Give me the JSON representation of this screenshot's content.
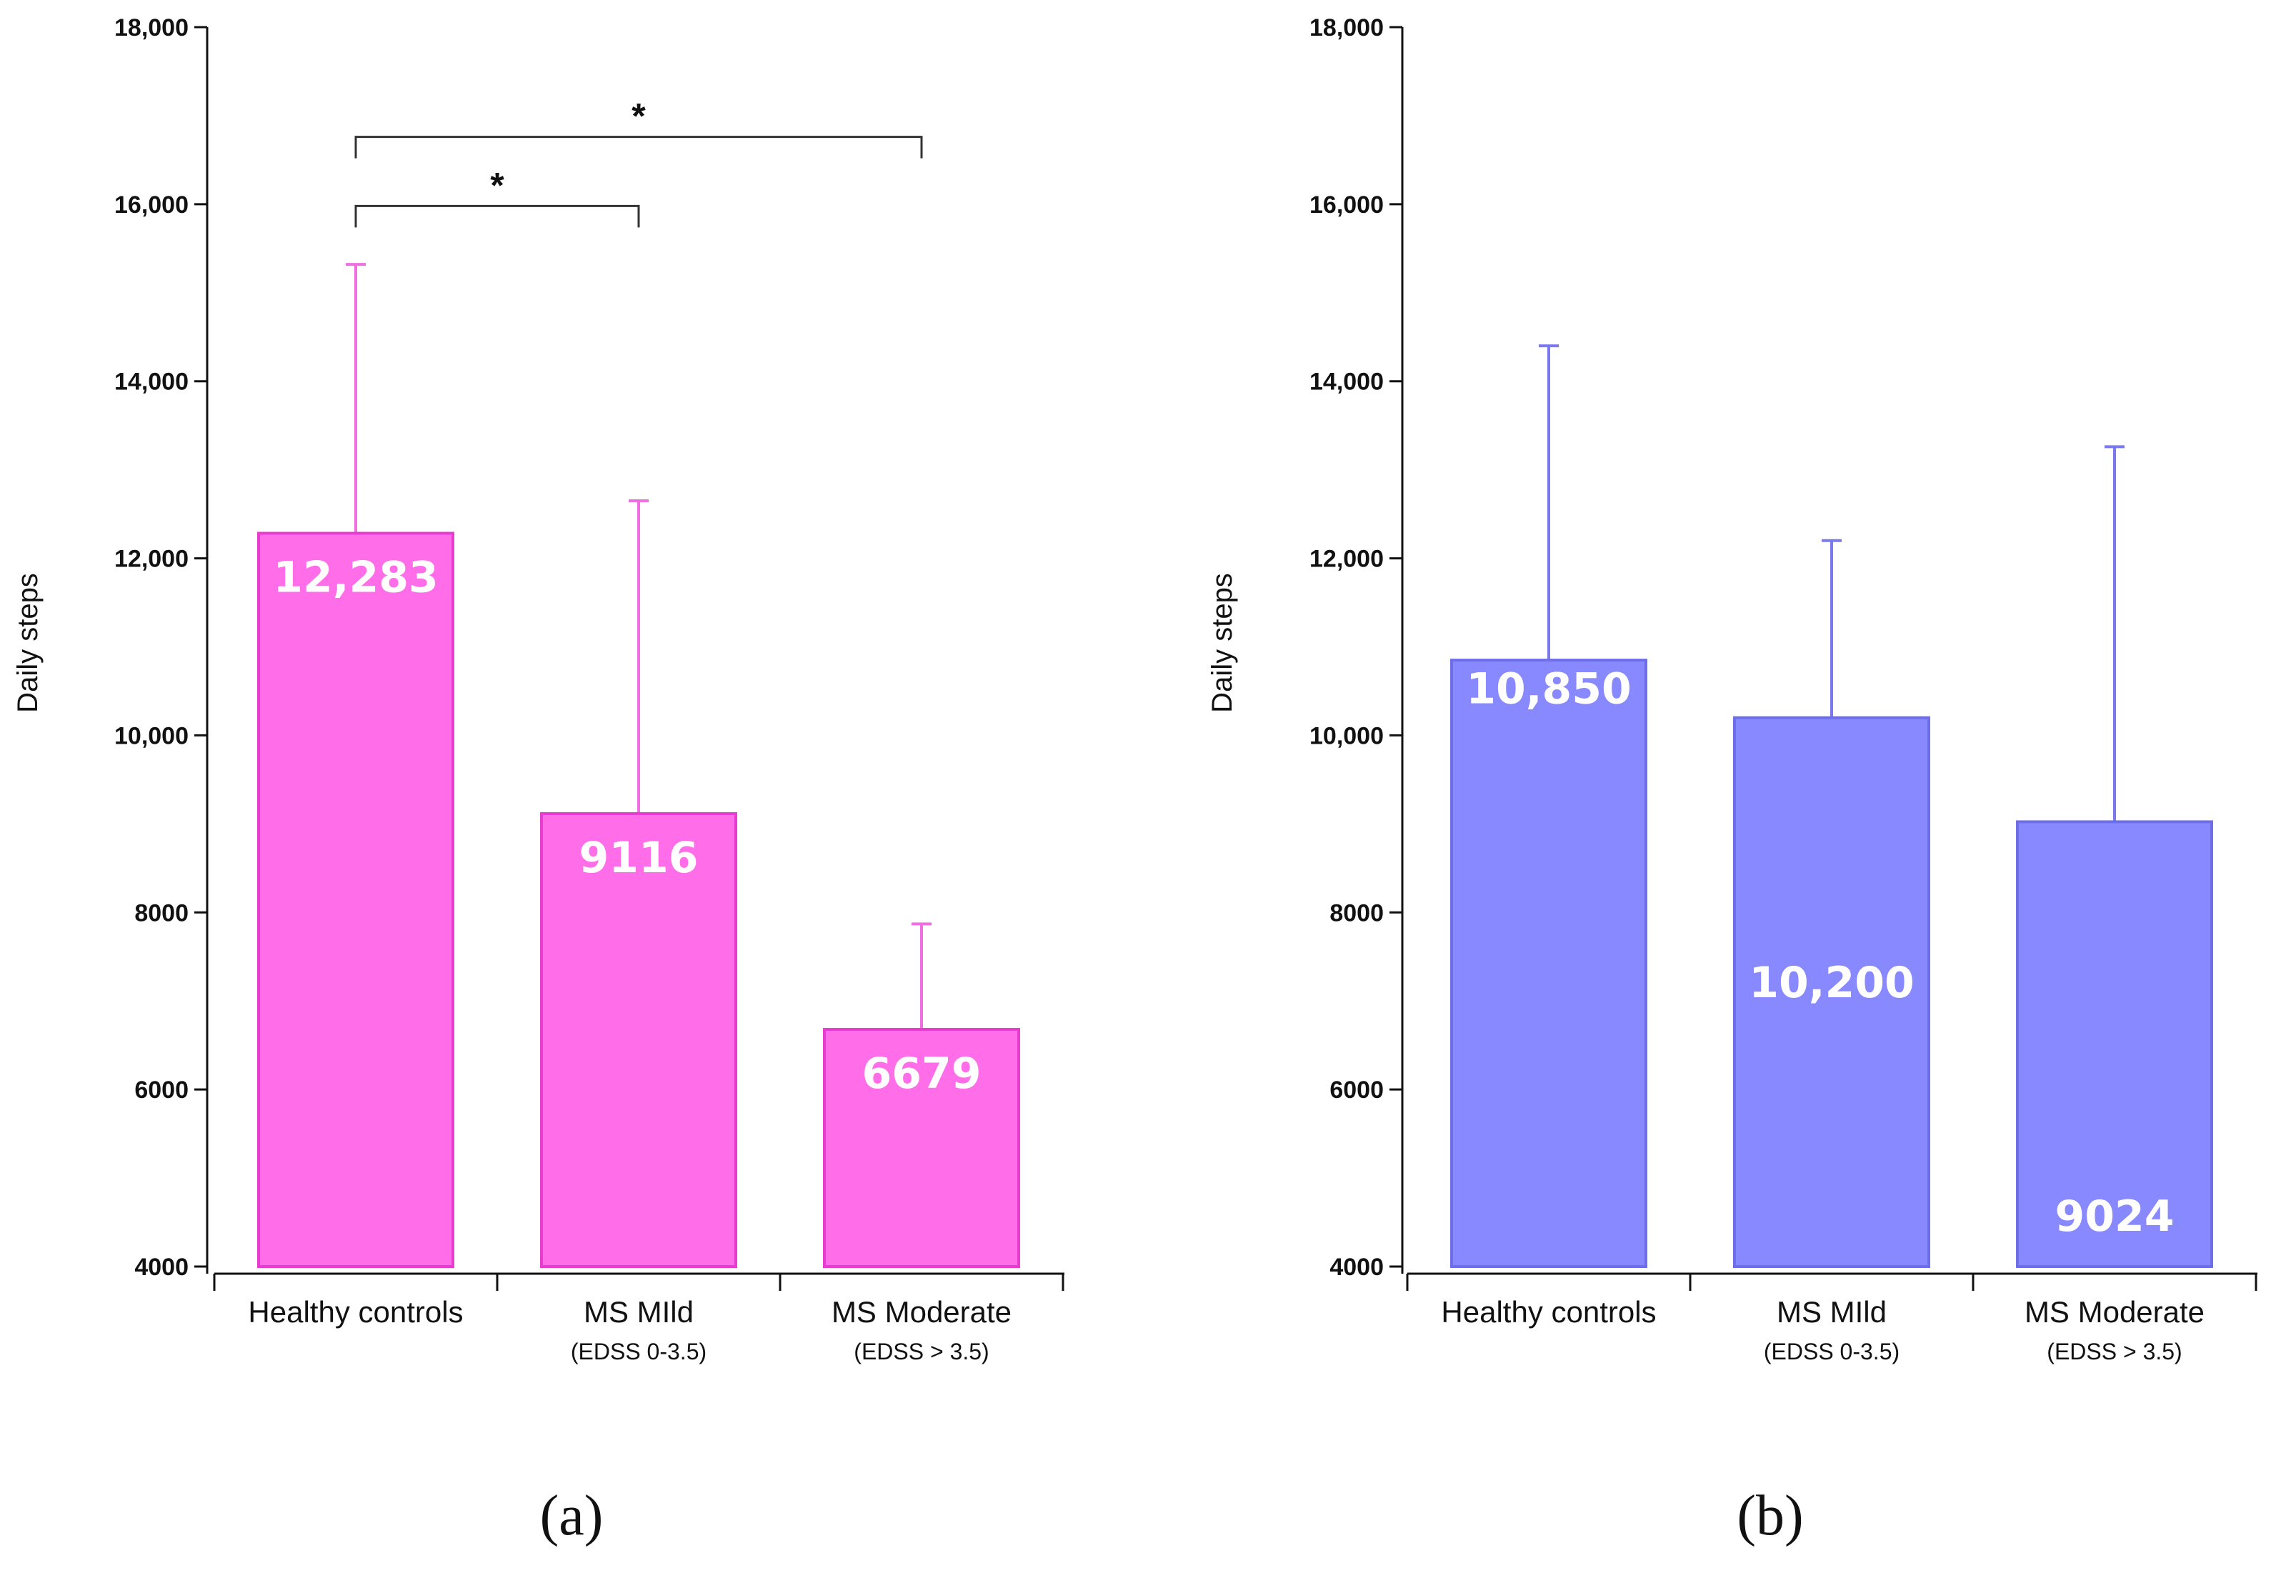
{
  "chart_data": [
    {
      "type": "bar",
      "panel_label": "(a)",
      "ylabel": "Daily steps",
      "ylim": [
        4000,
        18000
      ],
      "yticks": [
        4000,
        6000,
        8000,
        10000,
        12000,
        14000,
        16000,
        18000
      ],
      "ytick_labels": [
        "4000",
        "6000",
        "8000",
        "10,000",
        "12,000",
        "14,000",
        "16,000",
        "18,000"
      ],
      "categories": [
        "Healthy controls",
        "MS MIld",
        "MS Moderate"
      ],
      "category_sublabels": [
        "",
        "(EDSS 0-3.5)",
        "(EDSS > 3.5)"
      ],
      "values": [
        12283,
        9116,
        6679
      ],
      "value_labels": [
        "12,283",
        "9116",
        "6679"
      ],
      "error_upper": [
        15320,
        12650,
        7870
      ],
      "bar_color": "#ff6ee8",
      "bar_edge_color": "#e83cd0",
      "error_color": "#f06ee0",
      "significance": [
        {
          "from": 0,
          "to": 1,
          "label": "*",
          "y": 15980
        },
        {
          "from": 0,
          "to": 2,
          "label": "*",
          "y": 16760
        }
      ],
      "grid": false
    },
    {
      "type": "bar",
      "panel_label": "(b)",
      "ylabel": "Daily steps",
      "ylim": [
        4000,
        18000
      ],
      "yticks": [
        4000,
        6000,
        8000,
        10000,
        12000,
        14000,
        16000,
        18000
      ],
      "ytick_labels": [
        "4000",
        "6000",
        "8000",
        "10,000",
        "12,000",
        "14,000",
        "16,000",
        "18,000"
      ],
      "categories": [
        "Healthy controls",
        "MS MIld",
        "MS Moderate"
      ],
      "category_sublabels": [
        "",
        "(EDSS 0-3.5)",
        "(EDSS > 3.5)"
      ],
      "values": [
        10850,
        10200,
        9024
      ],
      "value_labels": [
        "10,850",
        "10,200",
        "9024"
      ],
      "value_label_positions": [
        10540,
        7220,
        4580
      ],
      "error_upper": [
        14400,
        12200,
        13260
      ],
      "bar_color": "#8888ff",
      "bar_edge_color": "#6e6ee8",
      "error_color": "#7a7aee",
      "significance": [],
      "grid": false
    }
  ]
}
